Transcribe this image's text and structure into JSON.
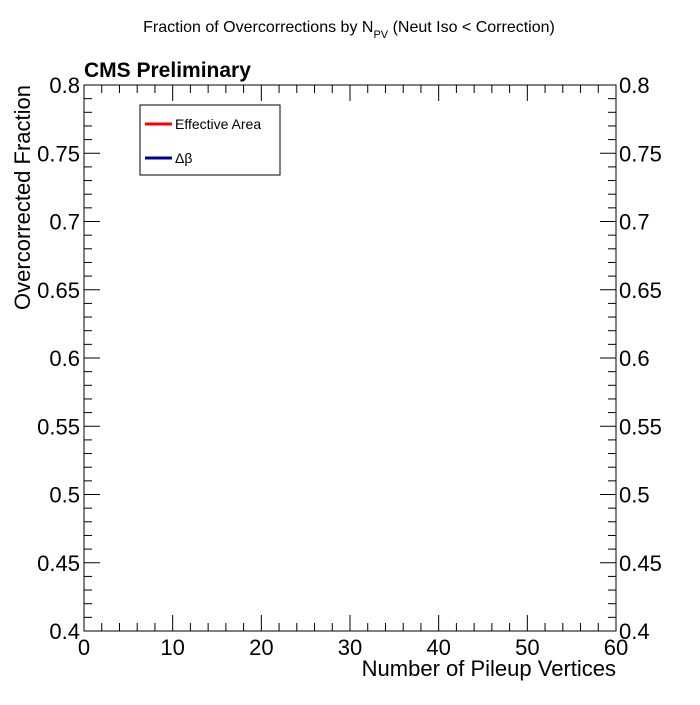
{
  "chart_data": {
    "type": "line",
    "title_main": "Fraction of Overcorrections by N",
    "title_subscript": "PV",
    "title_tail": " (Neut Iso < Correction)",
    "label": "CMS Preliminary",
    "xlabel": "Number of Pileup Vertices",
    "ylabel": "Overcorrected Fraction",
    "xlim": [
      0,
      60
    ],
    "ylim": [
      0.4,
      0.8
    ],
    "x_major_ticks": [
      0,
      10,
      20,
      30,
      40,
      50,
      60
    ],
    "x_minor_step": 2,
    "y_major_ticks": [
      0.4,
      0.45,
      0.5,
      0.55,
      0.6,
      0.65,
      0.7,
      0.75,
      0.8
    ],
    "y_tick_labels": [
      "0.4",
      "0.45",
      "0.5",
      "0.55",
      "0.6",
      "0.65",
      "0.7",
      "0.75",
      "0.8"
    ],
    "y_minor_step": 0.01,
    "grid": false,
    "legend_position": "top-left",
    "series": [
      {
        "name": "Effective Area",
        "color": "#ff0000",
        "x": [],
        "y": []
      },
      {
        "name": "Δβ",
        "color": "#000099",
        "x": [],
        "y": []
      }
    ]
  }
}
